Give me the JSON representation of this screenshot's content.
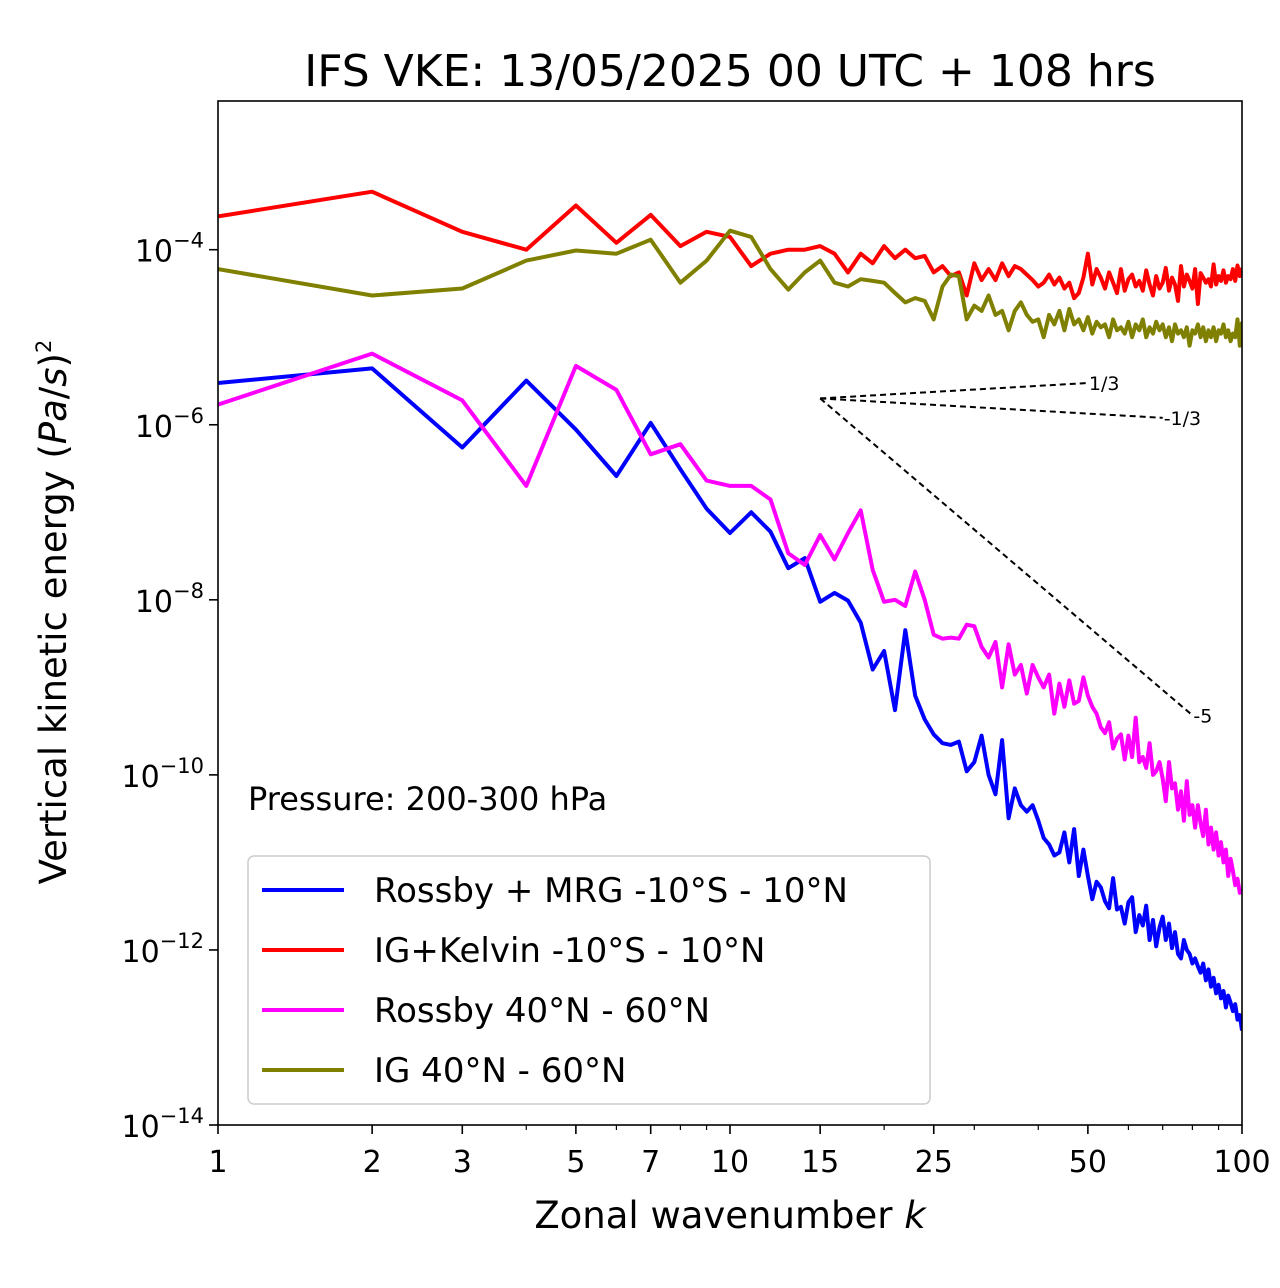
{
  "chart_data": {
    "type": "line",
    "title": "IFS VKE: 13/05/2025 00 UTC + 108 hrs",
    "xlabel": "Zonal wavenumber k",
    "ylabel": "Vertical kinetic energy (Pa/s)^2",
    "xscale": "log",
    "yscale": "log",
    "xlim": [
      1,
      100
    ],
    "ylim": [
      1e-14,
      0.005
    ],
    "xticks": [
      {
        "value": 1,
        "label": "1"
      },
      {
        "value": 2,
        "label": "2"
      },
      {
        "value": 3,
        "label": "3"
      },
      {
        "value": 5,
        "label": "5"
      },
      {
        "value": 7,
        "label": "7"
      },
      {
        "value": 10,
        "label": "10"
      },
      {
        "value": 15,
        "label": "15"
      },
      {
        "value": 25,
        "label": "25"
      },
      {
        "value": 50,
        "label": "50"
      },
      {
        "value": 100,
        "label": "100"
      }
    ],
    "yticks": [
      {
        "value": 1e-14,
        "base": "10",
        "exp": "−14"
      },
      {
        "value": 1e-12,
        "base": "10",
        "exp": "−12"
      },
      {
        "value": 1e-10,
        "base": "10",
        "exp": "−10"
      },
      {
        "value": 1e-08,
        "base": "10",
        "exp": "−8"
      },
      {
        "value": 1e-06,
        "base": "10",
        "exp": "−6"
      },
      {
        "value": 0.0001,
        "base": "10",
        "exp": "−4"
      }
    ],
    "annotation": "Pressure: 200-300 hPa",
    "legend_position": "lower-left",
    "reference_lines": [
      {
        "label": "1/3",
        "x": [
          15,
          50
        ],
        "y": [
          2e-06,
          3e-06
        ]
      },
      {
        "label": "-1/3",
        "x": [
          15,
          70
        ],
        "y": [
          2e-06,
          1.2e-06
        ]
      },
      {
        "label": "-5",
        "x": [
          15,
          80
        ],
        "y": [
          2e-06,
          4.8e-10
        ]
      }
    ],
    "series": [
      {
        "name": "Rossby + MRG -10°S - 10°N",
        "color": "#0000ff",
        "x": [
          1,
          2,
          3,
          4,
          5,
          6,
          7,
          8,
          9,
          10,
          11,
          12,
          13,
          14,
          15,
          16,
          17,
          18,
          19,
          20,
          21,
          22,
          23,
          24,
          25,
          26,
          27,
          28,
          29,
          30,
          31,
          32,
          33,
          34,
          35,
          36,
          37,
          38,
          39,
          40,
          41,
          42,
          43,
          44,
          45,
          46,
          47,
          48,
          49,
          50,
          51,
          52,
          53,
          54,
          55,
          56,
          57,
          58,
          59,
          60,
          61,
          62,
          63,
          64,
          65,
          66,
          67,
          68,
          69,
          70,
          71,
          72,
          73,
          74,
          75,
          76,
          77,
          78,
          79,
          80,
          81,
          82,
          83,
          84,
          85,
          86,
          87,
          88,
          89,
          90,
          91,
          92,
          93,
          94,
          95,
          96,
          97,
          98,
          99,
          100
        ],
        "y": [
          3e-06,
          4.4e-06,
          5.5e-07,
          3.2e-06,
          8.8e-07,
          2.6e-07,
          1.05e-06,
          3.1e-07,
          1.1e-07,
          5.8e-08,
          1e-07,
          6e-08,
          2.3e-08,
          3e-08,
          9.5e-09,
          1.2e-08,
          9.8e-09,
          5.5e-09,
          1.6e-09,
          2.6e-09,
          5.5e-10,
          4.5e-09,
          8e-10,
          4.3e-10,
          2.9e-10,
          2.3e-10,
          2.2e-10,
          2.4e-10,
          1.1e-10,
          1.4e-10,
          2.8e-10,
          1e-10,
          6e-11,
          2.5e-10,
          3.2e-11,
          7e-11,
          4.5e-11,
          3.8e-11,
          4.5e-11,
          3e-11,
          1.9e-11,
          1.6e-11,
          1.2e-11,
          1.3e-11,
          2.2e-11,
          1e-11,
          2.4e-11,
          7e-12,
          1.4e-11,
          7e-12,
          3.8e-12,
          6e-12,
          5.2e-12,
          3.6e-12,
          3e-12,
          6.6e-12,
          2.9e-12,
          3.1e-12,
          2e-12,
          3.5e-12,
          4e-12,
          1.6e-12,
          2.5e-12,
          1.9e-12,
          3.2e-12,
          1.3e-12,
          2.2e-12,
          1.1e-12,
          1.8e-12,
          2.4e-12,
          1.3e-12,
          2e-12,
          1.05e-12,
          1.6e-12,
          9e-13,
          8e-13,
          1.3e-12,
          1e-12,
          9e-13,
          7e-13,
          8e-13,
          6.5e-13,
          5.5e-13,
          7e-13,
          4.5e-13,
          6e-13,
          3.8e-13,
          4.8e-13,
          3.2e-13,
          4e-13,
          2.8e-13,
          3.4e-13,
          2.2e-13,
          3e-13,
          2.5e-13,
          2e-13,
          2.4e-13,
          1.6e-13,
          1.8e-13,
          1.2e-13
        ]
      },
      {
        "name": "IG+Kelvin -10°S - 10°N",
        "color": "#ff0000",
        "x": [
          1,
          2,
          3,
          4,
          5,
          6,
          7,
          8,
          9,
          10,
          11,
          12,
          13,
          14,
          15,
          16,
          17,
          18,
          19,
          20,
          21,
          22,
          23,
          24,
          25,
          26,
          27,
          28,
          29,
          30,
          31,
          32,
          33,
          34,
          35,
          36,
          37,
          38,
          39,
          40,
          41,
          42,
          43,
          44,
          45,
          46,
          47,
          48,
          49,
          50,
          51,
          52,
          53,
          54,
          55,
          56,
          57,
          58,
          59,
          60,
          61,
          62,
          63,
          64,
          65,
          66,
          67,
          68,
          69,
          70,
          71,
          72,
          73,
          74,
          75,
          76,
          77,
          78,
          79,
          80,
          81,
          82,
          83,
          84,
          85,
          86,
          87,
          88,
          89,
          90,
          91,
          92,
          93,
          94,
          95,
          96,
          97,
          98,
          99,
          100
        ],
        "y": [
          0.00024,
          0.00046,
          0.00016,
          0.0001,
          0.00032,
          0.00012,
          0.00025,
          0.00011,
          0.00016,
          0.00014,
          6.5e-05,
          9e-05,
          0.0001,
          0.0001,
          0.00011,
          9e-05,
          5.5e-05,
          9e-05,
          7e-05,
          0.00011,
          8e-05,
          0.0001,
          8e-05,
          8.5e-05,
          5.5e-05,
          6.5e-05,
          5e-05,
          5.5e-05,
          3e-05,
          7e-05,
          4.5e-05,
          6e-05,
          4.5e-05,
          7e-05,
          5e-05,
          6.5e-05,
          6e-05,
          5.2e-05,
          4.5e-05,
          3.8e-05,
          4.2e-05,
          5.2e-05,
          4e-05,
          4.8e-05,
          3.6e-05,
          4.2e-05,
          2.8e-05,
          3.2e-05,
          4.8e-05,
          9e-05,
          4e-05,
          6e-05,
          4.8e-05,
          3.6e-05,
          5.5e-05,
          4.2e-05,
          3.2e-05,
          6e-05,
          3.4e-05,
          4.6e-05,
          5.2e-05,
          3.8e-05,
          4.4e-05,
          3.4e-05,
          5.8e-05,
          4e-05,
          3e-05,
          5e-05,
          3.6e-05,
          4.2e-05,
          6.2e-05,
          3.4e-05,
          4.8e-05,
          4e-05,
          2.6e-05,
          6.5e-05,
          3.8e-05,
          5.2e-05,
          4.4e-05,
          3.6e-05,
          6e-05,
          2.4e-05,
          5.4e-05,
          4.8e-05,
          4.2e-05,
          4.6e-05,
          3.8e-05,
          6.8e-05,
          4e-05,
          5e-05,
          4.4e-05,
          5.8e-05,
          4.2e-05,
          5e-05,
          4.6e-05,
          6e-05,
          4.4e-05,
          6.6e-05,
          5e-05,
          6.2e-05
        ]
      },
      {
        "name": "Rossby 40°N - 60°N",
        "color": "#ff00ff",
        "x": [
          1,
          2,
          3,
          4,
          5,
          6,
          7,
          8,
          9,
          10,
          11,
          12,
          13,
          14,
          15,
          16,
          17,
          18,
          19,
          20,
          21,
          22,
          23,
          24,
          25,
          26,
          27,
          28,
          29,
          30,
          31,
          32,
          33,
          34,
          35,
          36,
          37,
          38,
          39,
          40,
          41,
          42,
          43,
          44,
          45,
          46,
          47,
          48,
          49,
          50,
          51,
          52,
          53,
          54,
          55,
          56,
          57,
          58,
          59,
          60,
          61,
          62,
          63,
          64,
          65,
          66,
          67,
          68,
          69,
          70,
          71,
          72,
          73,
          74,
          75,
          76,
          77,
          78,
          79,
          80,
          81,
          82,
          83,
          84,
          85,
          86,
          87,
          88,
          89,
          90,
          91,
          92,
          93,
          94,
          95,
          96,
          97,
          98,
          99,
          100
        ],
        "y": [
          1.7e-06,
          6.5e-06,
          1.9e-06,
          2e-07,
          4.7e-06,
          2.5e-06,
          4.6e-07,
          6e-07,
          2.3e-07,
          2e-07,
          2e-07,
          1.4e-07,
          3.4e-08,
          2.5e-08,
          5.5e-08,
          2.9e-08,
          5.8e-08,
          1.05e-07,
          2.2e-08,
          9.5e-09,
          1e-08,
          8.5e-09,
          2.1e-08,
          1e-08,
          4e-09,
          3.6e-09,
          3.7e-09,
          3.6e-09,
          5.2e-09,
          5e-09,
          2.9e-09,
          2.2e-09,
          3.3e-09,
          1e-09,
          3.1e-09,
          1.4e-09,
          1.8e-09,
          8.5e-10,
          1.8e-09,
          1.3e-09,
          1e-09,
          1.4e-09,
          5e-10,
          1.1e-09,
          6e-10,
          1.2e-09,
          6.5e-10,
          7e-10,
          1.3e-09,
          8e-10,
          6e-10,
          5e-10,
          3.5e-10,
          3e-10,
          4e-10,
          2e-10,
          2.6e-10,
          2.9e-10,
          1.5e-10,
          2.8e-10,
          1.6e-10,
          4.5e-10,
          1.4e-10,
          1.6e-10,
          1.2e-10,
          2.3e-10,
          1e-10,
          1.1e-10,
          1.4e-10,
          9e-11,
          5e-11,
          1.4e-10,
          7e-11,
          8e-11,
          4e-11,
          6.5e-11,
          3e-11,
          8.5e-11,
          3.5e-11,
          4.5e-11,
          2.5e-11,
          4.5e-11,
          2.8e-11,
          2e-11,
          4e-11,
          1.6e-11,
          2.5e-11,
          1.4e-11,
          2.2e-11,
          1.2e-11,
          1.7e-11,
          1e-11,
          1.4e-11,
          7e-12,
          1.1e-11,
          8e-12,
          5.5e-12,
          6.5e-12,
          4.5e-12,
          5e-12
        ]
      },
      {
        "name": "IG 40°N - 60°N",
        "color": "#808000",
        "x": [
          1,
          2,
          3,
          4,
          5,
          6,
          7,
          8,
          9,
          10,
          11,
          12,
          13,
          14,
          15,
          16,
          17,
          18,
          19,
          20,
          21,
          22,
          23,
          24,
          25,
          26,
          27,
          28,
          29,
          30,
          31,
          32,
          33,
          34,
          35,
          36,
          37,
          38,
          39,
          40,
          41,
          42,
          43,
          44,
          45,
          46,
          47,
          48,
          49,
          50,
          51,
          52,
          53,
          54,
          55,
          56,
          57,
          58,
          59,
          60,
          61,
          62,
          63,
          64,
          65,
          66,
          67,
          68,
          69,
          70,
          71,
          72,
          73,
          74,
          75,
          76,
          77,
          78,
          79,
          80,
          81,
          82,
          83,
          84,
          85,
          86,
          87,
          88,
          89,
          90,
          91,
          92,
          93,
          94,
          95,
          96,
          97,
          98,
          99,
          100
        ],
        "y": [
          6e-05,
          3e-05,
          3.6e-05,
          7.5e-05,
          9.8e-05,
          9e-05,
          0.00013,
          4.2e-05,
          7.5e-05,
          0.000165,
          0.00014,
          6e-05,
          3.5e-05,
          5.5e-05,
          7.5e-05,
          4.2e-05,
          3.8e-05,
          4.6e-05,
          4.4e-05,
          4.2e-05,
          3.2e-05,
          2.5e-05,
          2.8e-05,
          2.6e-05,
          1.6e-05,
          3.8e-05,
          5.2e-05,
          5e-05,
          1.6e-05,
          2.3e-05,
          2e-05,
          3e-05,
          1.8e-05,
          2e-05,
          1.2e-05,
          2e-05,
          2.5e-05,
          1.8e-05,
          1.5e-05,
          1.6e-05,
          1e-05,
          1.8e-05,
          1.4e-05,
          2e-05,
          1.2e-05,
          2.1e-05,
          1.4e-05,
          1.6e-05,
          1.2e-05,
          1.7e-05,
          1.1e-05,
          1.5e-05,
          1.3e-05,
          1.4e-05,
          1e-05,
          1.6e-05,
          1.2e-05,
          1.3e-05,
          1.1e-05,
          1.5e-05,
          1e-05,
          1.4e-05,
          1.2e-05,
          1.6e-05,
          1e-05,
          1.3e-05,
          1.1e-05,
          1.5e-05,
          1.2e-05,
          1.4e-05,
          1e-05,
          1.3e-05,
          9e-06,
          1.4e-05,
          1.1e-05,
          1.2e-05,
          1e-05,
          1.3e-05,
          8e-06,
          1.2e-05,
          1.1e-05,
          1.4e-05,
          1e-05,
          1.3e-05,
          9e-06,
          1.2e-05,
          1e-05,
          1.3e-05,
          9e-06,
          1.2e-05,
          1.1e-05,
          1.4e-05,
          1e-05,
          1.2e-05,
          9e-06,
          1.1e-05,
          1e-05,
          1.6e-05,
          8e-06,
          1.5e-05
        ]
      }
    ]
  }
}
